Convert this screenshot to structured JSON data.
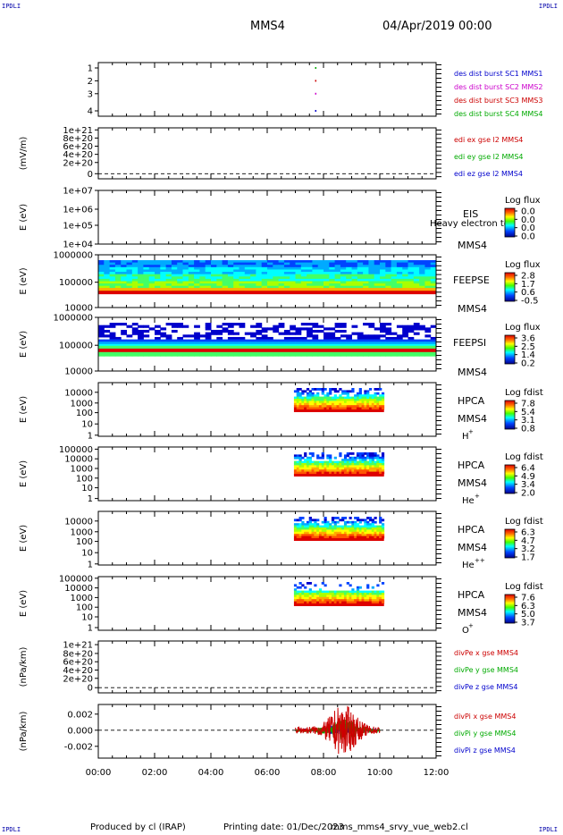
{
  "header": {
    "corner_left_top": "IPDLI",
    "corner_right_top": "IPDLI",
    "corner_left_bottom": "IPDLI",
    "corner_right_bottom": "IPDLI",
    "title": "MMS4",
    "date": "04/Apr/2019 00:00"
  },
  "footer": {
    "produced": "Produced by cl (IRAP)",
    "printing": "Printing date: 01/Dec/2023",
    "file": "mms_mms4_srvy_vue_web2.cl"
  },
  "chart_data": [
    {
      "type": "scatter",
      "panel": "des dist burst",
      "ytick_labels": [
        "1",
        "2",
        "3",
        "4"
      ],
      "ylim": [
        0.5,
        4.5
      ],
      "series": [
        {
          "name": "des dist burst SC1 MMS1",
          "color": "#0000cc",
          "x": [
            7.7
          ],
          "y": [
            1
          ]
        },
        {
          "name": "des dist burst SC2 MMS2",
          "color": "#cc00cc",
          "x": [
            7.7
          ],
          "y": [
            2
          ]
        },
        {
          "name": "des dist burst SC3 MMS3",
          "color": "#cc0000",
          "x": [
            7.7
          ],
          "y": [
            3
          ]
        },
        {
          "name": "des dist burst SC4 MMS4",
          "color": "#00aa00",
          "x": [
            7.7
          ],
          "y": [
            4
          ]
        }
      ]
    },
    {
      "type": "line",
      "panel": "edi",
      "ylabel": "(mV/m)",
      "ytick_labels": [
        "1e+21",
        "8e+20",
        "6e+20",
        "4e+20",
        "2e+20",
        "0"
      ],
      "ylim": [
        0,
        1e+21
      ],
      "series": [
        {
          "name": "edi ex gse l2 MMS4",
          "color": "#cc0000",
          "values": []
        },
        {
          "name": "edi ey gse l2 MMS4",
          "color": "#00aa00",
          "values": []
        },
        {
          "name": "edi ez gse l2 MMS4",
          "color": "#0000cc",
          "values": []
        }
      ]
    },
    {
      "type": "heatmap",
      "panel": "EIS",
      "ylabel": "E (eV)",
      "ytick_labels": [
        "1e+07",
        "1e+06",
        "1e+05",
        "1e+04"
      ],
      "ylog": [
        10000,
        10000000
      ],
      "instrument": "EIS",
      "extra_label": "Heavy electron to",
      "spacecraft": "MMS4",
      "colorbar": {
        "title": "Log flux",
        "ticks": [
          "0.0",
          "0.0",
          "0.0",
          "0.0"
        ]
      },
      "filled_range": []
    },
    {
      "type": "heatmap",
      "panel": "FEEPSE",
      "ylabel": "E (eV)",
      "ytick_labels": [
        "1000000",
        "100000",
        "10000"
      ],
      "ylog": [
        10000,
        1000000
      ],
      "instrument": "FEEPSE",
      "spacecraft": "MMS4",
      "colorbar": {
        "title": "Log flux",
        "ticks": [
          "2.8",
          "1.7",
          "0.6",
          "-0.5"
        ]
      },
      "filled_range": [
        0,
        12
      ]
    },
    {
      "type": "heatmap",
      "panel": "FEEPSI",
      "ylabel": "E (eV)",
      "ytick_labels": [
        "1000000",
        "100000",
        "10000"
      ],
      "ylog": [
        10000,
        1000000
      ],
      "instrument": "FEEPSI",
      "spacecraft": "MMS4",
      "colorbar": {
        "title": "Log flux",
        "ticks": [
          "3.6",
          "2.5",
          "1.4",
          "0.2"
        ]
      },
      "filled_range": [
        0,
        12
      ]
    },
    {
      "type": "heatmap",
      "panel": "HPCA H+",
      "ylabel": "E (eV)",
      "ytick_labels": [
        "10000",
        "1000",
        "100",
        "10",
        "1"
      ],
      "ylog": [
        1,
        40000
      ],
      "instrument": "HPCA",
      "spacecraft": "MMS4",
      "species": "H",
      "charge": "+",
      "colorbar": {
        "title": "Log fdist",
        "ticks": [
          "7.8",
          "5.4",
          "3.1",
          "0.8"
        ]
      },
      "filled_range": [
        6.95,
        10.15
      ]
    },
    {
      "type": "heatmap",
      "panel": "HPCA He+",
      "ylabel": "E (eV)",
      "ytick_labels": [
        "100000",
        "10000",
        "1000",
        "100",
        "10",
        "1"
      ],
      "ylog": [
        1,
        100000
      ],
      "instrument": "HPCA",
      "spacecraft": "MMS4",
      "species": "He",
      "charge": "+",
      "colorbar": {
        "title": "Log fdist",
        "ticks": [
          "6.4",
          "4.9",
          "3.4",
          "2.0"
        ]
      },
      "filled_range": [
        6.95,
        10.15
      ]
    },
    {
      "type": "heatmap",
      "panel": "HPCA He++",
      "ylabel": "E (eV)",
      "ytick_labels": [
        "10000",
        "1000",
        "100",
        "10",
        "1"
      ],
      "ylog": [
        1,
        40000
      ],
      "instrument": "HPCA",
      "spacecraft": "MMS4",
      "species": "He",
      "charge": "++",
      "colorbar": {
        "title": "Log fdist",
        "ticks": [
          "6.3",
          "4.7",
          "3.2",
          "1.7"
        ]
      },
      "filled_range": [
        6.95,
        10.15
      ]
    },
    {
      "type": "heatmap",
      "panel": "HPCA O+",
      "ylabel": "E (eV)",
      "ytick_labels": [
        "100000",
        "10000",
        "1000",
        "100",
        "10",
        "1"
      ],
      "ylog": [
        1,
        100000
      ],
      "instrument": "HPCA",
      "spacecraft": "MMS4",
      "species": "O",
      "charge": "+",
      "colorbar": {
        "title": "Log fdist",
        "ticks": [
          "7.6",
          "6.3",
          "5.0",
          "3.7"
        ]
      },
      "filled_range": [
        6.95,
        10.15
      ]
    },
    {
      "type": "line",
      "panel": "divPe",
      "ylabel": "(nPa/km)",
      "ytick_labels": [
        "1e+21",
        "8e+20",
        "6e+20",
        "4e+20",
        "2e+20",
        "0"
      ],
      "ylim": [
        0,
        1e+21
      ],
      "series": [
        {
          "name": "divPe x gse MMS4",
          "color": "#cc0000",
          "values": []
        },
        {
          "name": "divPe y gse MMS4",
          "color": "#00aa00",
          "values": []
        },
        {
          "name": "divPe z gse MMS4",
          "color": "#0000cc",
          "values": []
        }
      ]
    },
    {
      "type": "line",
      "panel": "divPi",
      "ylabel": "(nPa/km)",
      "ytick_labels": [
        "0.002",
        "0.000",
        "-0.002"
      ],
      "ylim": [
        -0.0035,
        0.0035
      ],
      "series": [
        {
          "name": "divPi x gse MMS4",
          "color": "#cc0000",
          "x_range": [
            7.0,
            10.0
          ],
          "max_abs": 0.0028
        },
        {
          "name": "divPi y gse MMS4",
          "color": "#00aa00",
          "x_range": [
            7.0,
            10.0
          ],
          "max_abs": 0.0012
        },
        {
          "name": "divPi z gse MMS4",
          "color": "#0000cc",
          "x_range": [
            7.0,
            10.0
          ],
          "max_abs": 0.0007
        }
      ]
    }
  ],
  "x_axis": {
    "ticks": [
      "00:00",
      "02:00",
      "04:00",
      "06:00",
      "08:00",
      "10:00",
      "12:00"
    ],
    "range_hours": [
      0,
      12
    ]
  }
}
